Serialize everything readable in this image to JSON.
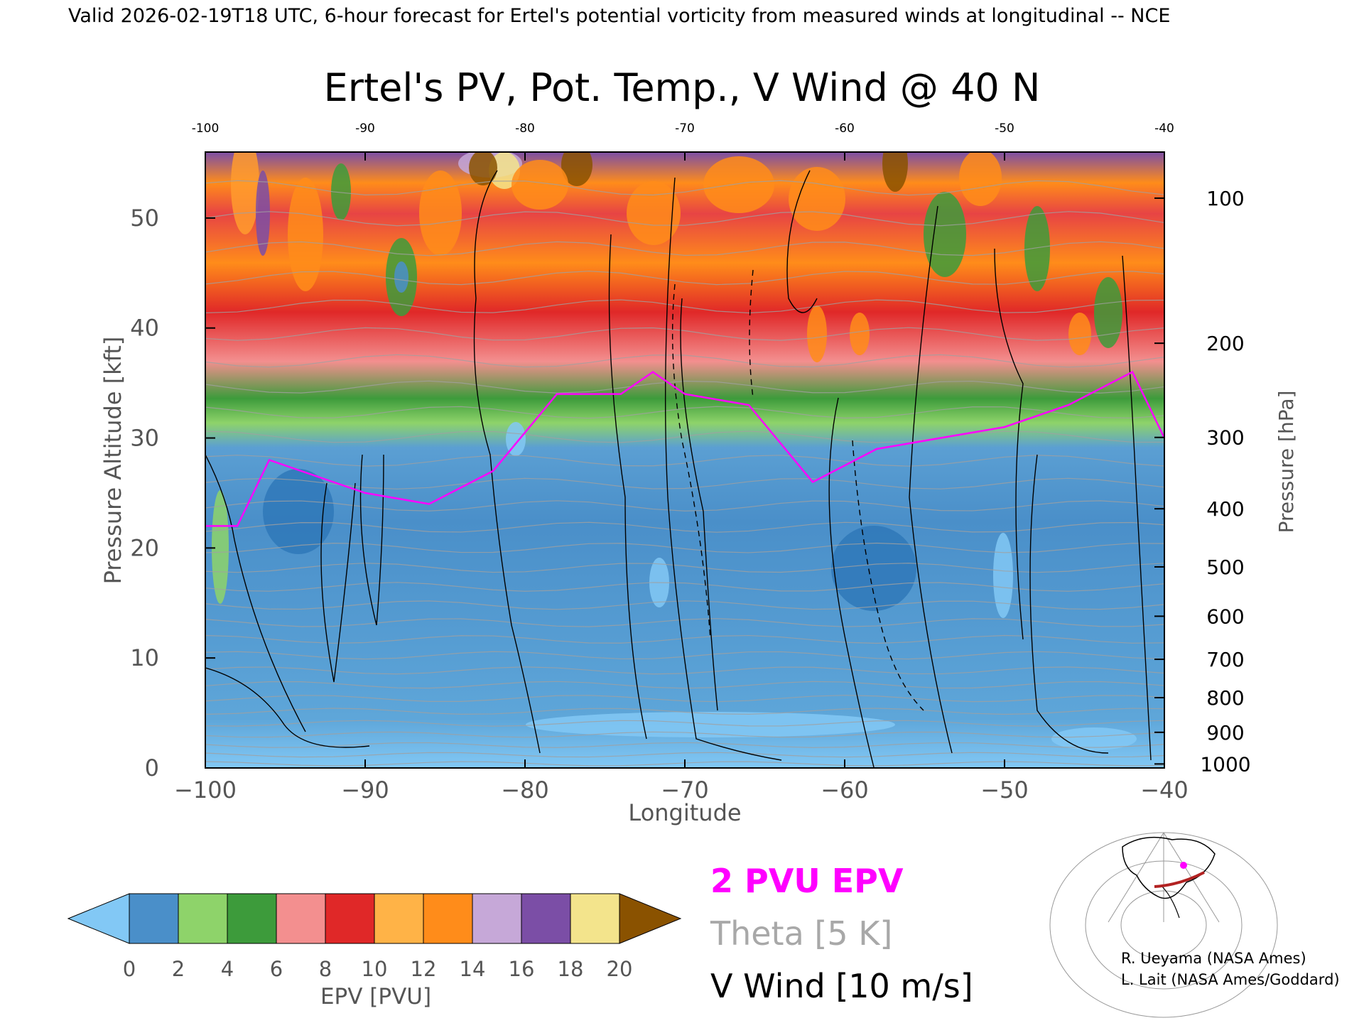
{
  "header_text": "Valid 2026-02-19T18 UTC, 6-hour forecast for Ertel's potential vorticity from measured winds at longitudinal -- NCE",
  "chart_data": {
    "type": "heatmap",
    "title": "Ertel's PV, Pot. Temp., V Wind @ 40 N",
    "xlabel": "Longitude",
    "ylabel": "Pressure Altitude [kft]",
    "y2label": "Pressure [hPa]",
    "xlim": [
      -100,
      -40
    ],
    "ylim": [
      0,
      56
    ],
    "x_ticks": [
      "−100",
      "−90",
      "−80",
      "−70",
      "−60",
      "−50",
      "−40"
    ],
    "x_ticks_top": [
      "-100",
      "-90",
      "-80",
      "-70",
      "-60",
      "-50",
      "-40"
    ],
    "y_ticks": [
      "0",
      "10",
      "20",
      "30",
      "40",
      "50"
    ],
    "pressure_ticks": [
      "100",
      "200",
      "300",
      "400",
      "500",
      "600",
      "700",
      "800",
      "900",
      "1000"
    ],
    "pressure_levels_hpa": [
      100,
      200,
      300,
      400,
      500,
      600,
      700,
      800,
      900,
      1000
    ],
    "grid": false,
    "colorbar": {
      "label": "EPV [PVU]",
      "ticks": [
        "0",
        "2",
        "4",
        "6",
        "8",
        "10",
        "12",
        "14",
        "16",
        "18",
        "20"
      ],
      "colors": [
        "#4a8fc9",
        "#8ed36a",
        "#3d9b3b",
        "#f38f8f",
        "#e02828",
        "#ffb347",
        "#ff8c1a",
        "#c6a8d8",
        "#7b4ea6",
        "#f3e48c",
        "#8a5200"
      ],
      "under_color": "#82c8f5",
      "over_color": "#8a5200"
    },
    "legend": [
      {
        "label": "2 PVU EPV",
        "color": "#ff00ff"
      },
      {
        "label": "Theta [5 K]",
        "color": "#a8a8a8"
      },
      {
        "label": "V Wind [10 m/s]",
        "color": "#000000"
      }
    ],
    "tropopause_2pvu_kft": [
      {
        "x": -100,
        "y": 22
      },
      {
        "x": -98,
        "y": 22
      },
      {
        "x": -96,
        "y": 28
      },
      {
        "x": -94,
        "y": 27
      },
      {
        "x": -90,
        "y": 25
      },
      {
        "x": -86,
        "y": 24
      },
      {
        "x": -82,
        "y": 27
      },
      {
        "x": -78,
        "y": 34
      },
      {
        "x": -74,
        "y": 34
      },
      {
        "x": -72,
        "y": 36
      },
      {
        "x": -70,
        "y": 34
      },
      {
        "x": -66,
        "y": 33
      },
      {
        "x": -62,
        "y": 26
      },
      {
        "x": -58,
        "y": 29
      },
      {
        "x": -54,
        "y": 30
      },
      {
        "x": -50,
        "y": 31
      },
      {
        "x": -46,
        "y": 33
      },
      {
        "x": -42,
        "y": 36
      },
      {
        "x": -40,
        "y": 30
      }
    ]
  },
  "credits": [
    "R. Ueyama (NASA Ames)",
    "L. Lait (NASA Ames/Goddard)"
  ]
}
